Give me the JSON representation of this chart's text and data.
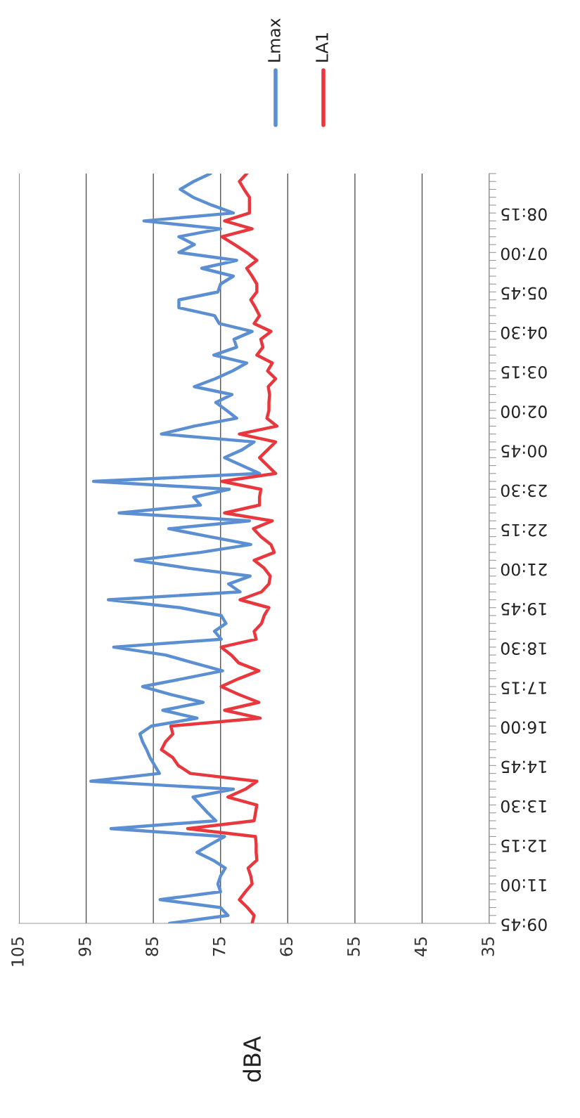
{
  "chart_data": {
    "type": "line",
    "orientation": "horizontal",
    "ylabel": "dBA",
    "categories": [
      null,
      null,
      null,
      null,
      null,
      "08:15",
      null,
      null,
      null,
      null,
      "07:00",
      null,
      null,
      null,
      null,
      "05:45",
      null,
      null,
      null,
      null,
      "04:30",
      null,
      null,
      null,
      null,
      "03:15",
      null,
      null,
      null,
      null,
      "02:00",
      null,
      null,
      null,
      null,
      "00:45",
      null,
      null,
      null,
      null,
      "23:30",
      null,
      null,
      null,
      null,
      "22:15",
      null,
      null,
      null,
      null,
      "21:00",
      null,
      null,
      null,
      null,
      "19:45",
      null,
      null,
      null,
      null,
      "18:30",
      null,
      null,
      null,
      null,
      "17:15",
      null,
      null,
      null,
      null,
      "16:00",
      null,
      null,
      null,
      null,
      "14:45",
      null,
      null,
      null,
      null,
      "13:30",
      null,
      null,
      null,
      null,
      "12:15",
      null,
      null,
      null,
      null,
      "11:00",
      null,
      null,
      null,
      null,
      "09:45"
    ],
    "series": [
      {
        "name": "Lmax",
        "color": "#5b8fd2",
        "values": [
          76.5,
          79,
          81,
          79.1,
          76.3,
          73.1,
          86.4,
          75,
          81.2,
          78.9,
          81.2,
          72.6,
          77.8,
          73.1,
          75,
          75.4,
          81.2,
          81.2,
          75.9,
          75.2,
          70.3,
          73,
          72.6,
          76,
          71.1,
          73.2,
          75.8,
          78.9,
          73.3,
          75.7,
          74.1,
          72.6,
          78.9,
          83.8,
          70,
          71.8,
          74.4,
          71.8,
          69.2,
          93.9,
          73.7,
          79,
          78,
          90.1,
          70.7,
          82.7,
          76.7,
          70.5,
          78,
          87.7,
          79.8,
          70.6,
          73.8,
          72.1,
          91.7,
          81,
          74.9,
          74.2,
          75.9,
          74.9,
          90.9,
          83.2,
          79,
          74.7,
          80.6,
          86.6,
          82.4,
          77.6,
          83.6,
          78.5,
          85.3,
          87,
          86.6,
          86,
          85.5,
          84.8,
          84.1,
          94.3,
          73.1,
          79.1,
          78,
          76.9,
          75.7,
          91.3,
          74.4,
          76.5,
          78.5,
          76.1,
          74.3,
          75,
          75.4,
          75,
          84,
          75,
          73.9,
          82.6
        ]
      },
      {
        "name": "LA1",
        "color": "#e8383d",
        "values": [
          71.1,
          72.2,
          71.5,
          70.7,
          70.7,
          70.7,
          74.4,
          70.3,
          74.8,
          72.9,
          71.1,
          69.6,
          71.1,
          70.3,
          69.6,
          69.6,
          70.5,
          69.8,
          69.2,
          70,
          67.5,
          69,
          68.7,
          69.6,
          67.3,
          68,
          66.8,
          67.9,
          67.7,
          67.8,
          67.8,
          68.1,
          66.6,
          72.2,
          66.8,
          68,
          69.2,
          68,
          66.8,
          74.8,
          69,
          69.2,
          69.2,
          74.4,
          67.3,
          70.1,
          69,
          67.5,
          67,
          70,
          68.5,
          67.6,
          67.8,
          68.9,
          72.1,
          67.8,
          68.5,
          68.9,
          70,
          69.7,
          74.9,
          73.4,
          72.3,
          69.3,
          72.3,
          74.9,
          72.3,
          69.3,
          74.4,
          69.1,
          82.4,
          82.1,
          83.2,
          83.8,
          82.1,
          81.3,
          79.5,
          69.6,
          71.3,
          73.9,
          69.6,
          69.8,
          70,
          79.9,
          69.8,
          69.7,
          69.7,
          69.6,
          70.9,
          70.5,
          70.3,
          71.3,
          72.2,
          71,
          70,
          70.3
        ]
      }
    ],
    "xlim": [
      105,
      35
    ],
    "xticks": [
      105,
      95,
      85,
      75,
      65,
      55,
      45,
      35
    ],
    "grid": "x",
    "legend": "top",
    "line_style": "solid",
    "marker": "none"
  }
}
